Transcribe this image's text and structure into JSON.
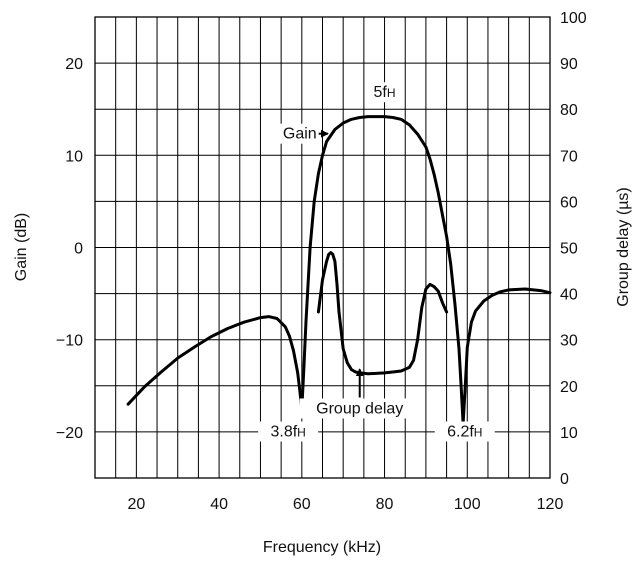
{
  "chart_data": {
    "type": "line",
    "title": "",
    "xlabel": "Frequency (kHz)",
    "ylabel_left": "Gain (dB)",
    "ylabel_right": "Group delay (µs)",
    "xlim": [
      10,
      120
    ],
    "ylim_left": [
      -25,
      25
    ],
    "ylim_right": [
      0,
      100
    ],
    "x_ticks": [
      20,
      40,
      60,
      80,
      100,
      120
    ],
    "y_ticks_left": [
      -20,
      -10,
      0,
      10,
      20
    ],
    "y_ticks_right": [
      0,
      10,
      20,
      30,
      40,
      50,
      60,
      70,
      80,
      90,
      100
    ],
    "x_tick_labels": [
      "20",
      "40",
      "60",
      "80",
      "100",
      "120"
    ],
    "y_tick_labels_left": [
      "−20",
      "−10",
      "0",
      "10",
      "20"
    ],
    "y_tick_labels_right": [
      "0",
      "10",
      "20",
      "30",
      "40",
      "50",
      "60",
      "70",
      "80",
      "90",
      "100"
    ],
    "grid": true,
    "grid_x_step": 5,
    "grid_y_step": 5,
    "series": [
      {
        "axis": "left",
        "color": "#000000",
        "x": [
          18,
          22,
          26,
          30,
          34,
          38,
          42,
          46,
          50,
          52,
          54,
          56,
          57,
          58,
          59,
          59.5,
          60,
          60.5,
          61,
          62,
          63,
          64,
          65,
          66,
          68,
          70,
          72,
          74,
          76,
          78,
          80,
          82,
          84,
          86,
          88,
          90,
          91,
          92,
          93,
          94,
          95,
          96,
          97,
          98,
          98.5,
          99,
          99.5,
          100,
          101,
          102,
          104,
          106,
          108,
          110,
          114,
          118,
          120
        ],
        "y": [
          -17,
          -15.1,
          -13.5,
          -12,
          -10.8,
          -9.7,
          -8.8,
          -8.1,
          -7.6,
          -7.5,
          -7.7,
          -8.6,
          -9.6,
          -11.2,
          -13.6,
          -15.5,
          -17.5,
          -13,
          -8,
          0,
          5,
          8,
          10,
          11.5,
          12.8,
          13.5,
          13.9,
          14.1,
          14.2,
          14.2,
          14.2,
          14.1,
          13.9,
          13.3,
          12.3,
          10.9,
          9.6,
          7.9,
          5.9,
          3.5,
          1.2,
          -1.8,
          -6.1,
          -11,
          -15,
          -19.1,
          -15.2,
          -10.8,
          -8.1,
          -6.9,
          -5.8,
          -5.2,
          -4.8,
          -4.6,
          -4.5,
          -4.7,
          -4.9
        ]
      },
      {
        "axis": "right",
        "color": "#000000",
        "x": [
          64,
          65,
          66,
          66.5,
          67,
          67.5,
          68,
          68.5,
          69,
          70,
          71,
          72,
          73,
          74,
          76,
          78,
          80,
          82,
          84,
          86,
          87,
          88,
          89,
          90,
          91,
          92,
          93,
          94,
          95
        ],
        "y": [
          36,
          43,
          47,
          48.5,
          48.9,
          48.5,
          47,
          42,
          36,
          28,
          25,
          23.5,
          23,
          22.8,
          22.6,
          22.7,
          22.8,
          23,
          23.2,
          24,
          25.5,
          30,
          37,
          41,
          42,
          41.5,
          40.5,
          38,
          36
        ]
      }
    ],
    "annotations": [
      {
        "text": "5f",
        "sub": "H",
        "x": 80,
        "y_left": 16.3
      },
      {
        "text": "Gain",
        "x": 63.6,
        "y_left": 11.8
      },
      {
        "text": "Group delay",
        "x": 74,
        "y_left": -18
      },
      {
        "text": "3.8f",
        "sub": "H",
        "x": 56.7,
        "y_left": -20.5
      },
      {
        "text": "6.2f",
        "sub": "H",
        "x": 99.4,
        "y_left": -20.5
      }
    ]
  }
}
